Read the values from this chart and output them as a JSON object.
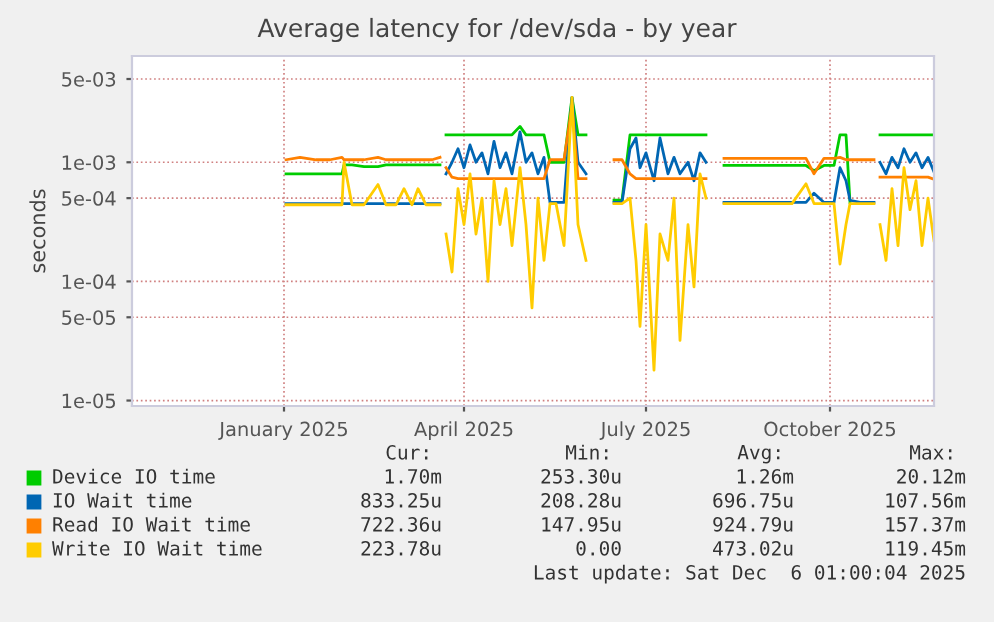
{
  "chart_data": {
    "type": "line",
    "title": "Average latency for /dev/sda - by year",
    "ylabel": "seconds",
    "x": [
      "2025-01-16",
      "2025-01-23",
      "2025-01-31",
      "2025-02-07",
      "2025-02-13",
      "2025-02-14",
      "2025-02-18",
      "2025-02-24",
      "2025-03-03",
      "2025-03-07",
      "2025-03-12",
      "2025-03-16",
      "2025-03-20",
      "2025-03-23",
      "2025-03-27",
      "2025-03-30",
      "2025-04-03",
      "2025-04-04",
      "2025-04-06",
      "2025-04-09",
      "2025-04-12",
      "2025-04-15",
      "2025-04-18",
      "2025-04-21",
      "2025-04-24",
      "2025-04-27",
      "2025-04-30",
      "2025-05-03",
      "2025-05-06",
      "2025-05-09",
      "2025-05-13",
      "2025-05-16",
      "2025-05-19",
      "2025-05-22",
      "2025-05-25",
      "2025-05-28",
      "2025-05-31",
      "2025-06-04",
      "2025-06-08",
      "2025-06-11",
      "2025-06-15",
      "2025-06-22",
      "2025-06-29",
      "2025-07-03",
      "2025-07-07",
      "2025-07-10",
      "2025-07-12",
      "2025-07-15",
      "2025-07-19",
      "2025-07-22",
      "2025-07-26",
      "2025-07-29",
      "2025-08-01",
      "2025-08-05",
      "2025-08-08",
      "2025-08-11",
      "2025-08-14",
      "2025-08-18",
      "2025-08-23",
      "2025-08-29",
      "2025-09-05",
      "2025-09-12",
      "2025-09-19",
      "2025-09-26",
      "2025-10-03",
      "2025-10-07",
      "2025-10-12",
      "2025-10-17",
      "2025-10-20",
      "2025-10-23",
      "2025-10-25",
      "2025-10-30",
      "2025-11-06",
      "2025-11-07",
      "2025-11-09",
      "2025-11-12",
      "2025-11-15",
      "2025-11-18",
      "2025-11-21",
      "2025-11-24",
      "2025-11-27",
      "2025-11-30",
      "2025-12-03",
      "2025-12-06"
    ],
    "series": [
      {
        "name": "Device IO time",
        "color": "#00cc00",
        "values": [
          0.0008,
          0.0008,
          0.0008,
          0.0008,
          0.0008,
          0.00095,
          0.00095,
          0.00092,
          0.00092,
          0.00095,
          0.00095,
          0.00095,
          0.00095,
          0.00095,
          0.00095,
          0.00095,
          0.00095,
          null,
          0.0017,
          0.0017,
          0.0017,
          0.0017,
          0.0017,
          0.0017,
          0.0017,
          0.0017,
          0.0017,
          0.0017,
          0.0017,
          0.0017,
          0.002,
          0.0017,
          0.0017,
          0.0017,
          0.0017,
          0.001,
          0.001,
          0.001,
          0.0035,
          0.0017,
          0.0017,
          null,
          0.00048,
          0.00048,
          0.0017,
          0.0017,
          0.0017,
          0.0017,
          0.0017,
          0.0017,
          0.0017,
          0.0017,
          0.0017,
          0.0017,
          0.0017,
          0.0017,
          0.0017,
          null,
          0.00094,
          0.00094,
          0.00094,
          0.00094,
          0.00094,
          0.00094,
          0.00094,
          0.00085,
          0.00094,
          0.00094,
          0.0017,
          0.0017,
          0.00046,
          null,
          null,
          null,
          0.0017,
          0.0017,
          0.0017,
          0.0017,
          0.0017,
          0.0017,
          0.0017,
          0.0017,
          0.0017,
          0.0017
        ]
      },
      {
        "name": "IO Wait time",
        "color": "#0066b3",
        "values": [
          0.00045,
          0.00045,
          0.00045,
          0.00045,
          0.00045,
          0.00045,
          0.00045,
          0.00045,
          0.00045,
          0.00045,
          0.00045,
          0.00045,
          0.00045,
          0.00045,
          0.00045,
          0.00045,
          0.00045,
          null,
          0.0008,
          0.001,
          0.0013,
          0.0009,
          0.0014,
          0.001,
          0.0012,
          0.0008,
          0.0015,
          0.0009,
          0.0012,
          0.0008,
          0.0018,
          0.001,
          0.0012,
          0.0008,
          0.0011,
          0.00046,
          0.00046,
          0.00046,
          0.0035,
          0.001,
          0.0008,
          null,
          0.00046,
          0.00046,
          0.0013,
          0.0016,
          0.0009,
          0.0012,
          0.0007,
          0.0016,
          0.0008,
          0.0011,
          0.0008,
          0.001,
          0.0007,
          0.0012,
          0.001,
          null,
          0.00046,
          0.00046,
          0.00046,
          0.00046,
          0.00046,
          0.00046,
          0.00046,
          0.00055,
          0.00046,
          0.00046,
          0.0009,
          0.0007,
          0.00048,
          0.00046,
          0.00046,
          null,
          0.001,
          0.0008,
          0.0011,
          0.0009,
          0.0013,
          0.001,
          0.0012,
          0.0009,
          0.0011,
          0.00083
        ]
      },
      {
        "name": "Read IO Wait time",
        "color": "#ff8000",
        "values": [
          0.00105,
          0.0011,
          0.00105,
          0.00105,
          0.0011,
          0.00105,
          0.00105,
          0.00105,
          0.0011,
          0.00105,
          0.00105,
          0.00105,
          0.00105,
          0.00105,
          0.00105,
          0.00105,
          0.0011,
          null,
          0.0009,
          0.00075,
          0.00073,
          0.00073,
          0.00073,
          0.00073,
          0.00073,
          0.00073,
          0.00073,
          0.00073,
          0.00073,
          0.00073,
          0.00073,
          0.00073,
          0.00073,
          0.00073,
          0.00073,
          0.00105,
          0.00105,
          0.00105,
          0.003,
          0.00073,
          0.00073,
          null,
          0.00105,
          0.00105,
          0.0008,
          0.00073,
          0.00073,
          0.00073,
          0.00073,
          0.00073,
          0.00073,
          0.00073,
          0.00073,
          0.00073,
          0.00073,
          0.00073,
          0.00073,
          null,
          0.00108,
          0.00108,
          0.00108,
          0.00108,
          0.00108,
          0.00108,
          0.00108,
          0.0008,
          0.00108,
          0.00108,
          0.0011,
          0.00105,
          0.00105,
          0.00105,
          0.00105,
          null,
          0.00075,
          0.00075,
          0.00075,
          0.00075,
          0.00075,
          0.00075,
          0.00075,
          0.00075,
          0.00075,
          0.00072
        ]
      },
      {
        "name": "Write IO Wait time",
        "color": "#ffcc00",
        "values": [
          0.00044,
          0.00044,
          0.00044,
          0.00044,
          0.00044,
          0.001,
          0.00044,
          0.00044,
          0.00065,
          0.00044,
          0.00044,
          0.0006,
          0.00044,
          0.0006,
          0.00044,
          0.00044,
          0.00044,
          null,
          0.00025,
          0.00012,
          0.0006,
          0.0003,
          0.0008,
          0.00025,
          0.0005,
          0.0001,
          0.0007,
          0.0003,
          0.0006,
          0.0002,
          0.0009,
          0.0003,
          6e-05,
          0.0005,
          0.00015,
          0.00045,
          0.00045,
          0.0002,
          0.0035,
          0.0003,
          0.00015,
          null,
          0.00045,
          0.00045,
          0.0005,
          0.00015,
          4.2e-05,
          0.0003,
          1.8e-05,
          0.00025,
          0.00015,
          0.0005,
          3.2e-05,
          0.0003,
          9e-05,
          0.0008,
          0.0005,
          null,
          0.00045,
          0.00045,
          0.00045,
          0.00045,
          0.00045,
          0.00045,
          0.00066,
          0.00045,
          0.00045,
          0.00045,
          0.00014,
          0.0003,
          0.00045,
          0.00045,
          0.00045,
          null,
          0.0003,
          0.00015,
          0.0006,
          0.0002,
          0.0009,
          0.0004,
          0.0007,
          0.0002,
          0.0005,
          0.00022
        ]
      }
    ],
    "xlim": [
      "2024-10-31",
      "2025-12-06"
    ],
    "xticks": [
      {
        "value": "2025-01-15",
        "label": "January 2025"
      },
      {
        "value": "2025-04-15",
        "label": "April 2025"
      },
      {
        "value": "2025-07-15",
        "label": "July 2025"
      },
      {
        "value": "2025-10-15",
        "label": "October 2025"
      }
    ],
    "log": true,
    "ylim": [
      9e-06,
      0.0078
    ],
    "yticks": [
      {
        "value": 1e-05,
        "label": "1e-05"
      },
      {
        "value": 5e-05,
        "label": "5e-05"
      },
      {
        "value": 0.0001,
        "label": "1e-04"
      },
      {
        "value": 0.0005,
        "label": "5e-04"
      },
      {
        "value": 0.001,
        "label": "1e-03"
      },
      {
        "value": 0.005,
        "label": "5e-03"
      }
    ],
    "grid": true,
    "legend": "bottom",
    "annotations": [
      "Cur:",
      "Min:",
      "Avg:",
      "Max:",
      "1.70m",
      "253.30u",
      "1.26m",
      "20.12m",
      "833.25u",
      "208.28u",
      "696.75u",
      "107.56m",
      "722.36u",
      "147.95u",
      "924.79u",
      "157.37m",
      "223.78u",
      "0.00",
      "473.02u",
      "119.45m",
      "Last update: Sat Dec  6 01:00:04 2025"
    ]
  }
}
